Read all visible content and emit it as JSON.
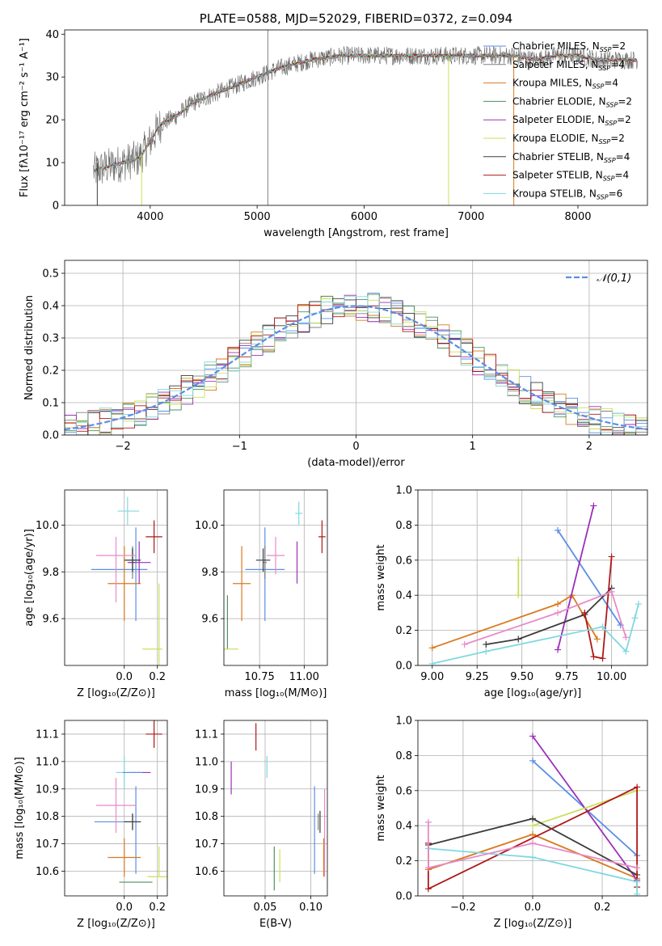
{
  "palette": [
    "#5b8ee6",
    "#808080",
    "#d97a1f",
    "#4f8f5f",
    "#9b30b8",
    "#c8e05a",
    "#3a3a3a",
    "#b01818",
    "#7fd8e0"
  ],
  "pal_light": "#e88ac8",
  "chart_data": [
    {
      "id": "spectrum",
      "type": "line",
      "title": "PLATE=0588, MJD=52029, FIBERID=0372, z=0.094",
      "xlabel": "wavelength [Angstrom, rest frame]",
      "ylabel": "Flux [fλ10⁻¹⁷ erg cm⁻² s⁻¹ A⁻¹]",
      "xlim": [
        3200,
        8650
      ],
      "ylim": [
        0,
        41
      ],
      "xticks": [
        4000,
        5000,
        6000,
        7000,
        8000
      ],
      "yticks": [
        0,
        10,
        20,
        30,
        40
      ],
      "grid": false,
      "legend_loc": "top-right",
      "continuum": [
        [
          3470,
          8
        ],
        [
          3600,
          9
        ],
        [
          3750,
          10
        ],
        [
          3900,
          11
        ],
        [
          4000,
          15
        ],
        [
          4100,
          19
        ],
        [
          4250,
          21
        ],
        [
          4400,
          24
        ],
        [
          4600,
          26
        ],
        [
          4800,
          28
        ],
        [
          5000,
          30
        ],
        [
          5200,
          32
        ],
        [
          5500,
          34
        ],
        [
          5800,
          35
        ],
        [
          6100,
          35
        ],
        [
          6400,
          35
        ],
        [
          6700,
          35
        ],
        [
          7000,
          35
        ],
        [
          7200,
          35
        ],
        [
          7400,
          35
        ],
        [
          7600,
          34
        ],
        [
          7800,
          35
        ],
        [
          8000,
          35
        ],
        [
          8200,
          34
        ],
        [
          8400,
          34
        ],
        [
          8560,
          34
        ]
      ],
      "series": [
        {
          "name": "Chabrier MILES, N_SSP=2"
        },
        {
          "name": "Salpeter MILES, N_SSP=4"
        },
        {
          "name": "Kroupa MILES, N_SSP=4"
        },
        {
          "name": "Chabrier ELODIE, N_SSP=2"
        },
        {
          "name": "Salpeter ELODIE, N_SSP=2"
        },
        {
          "name": "Kroupa ELODIE, N_SSP=2"
        },
        {
          "name": "Chabrier STELIB, N_SSP=4"
        },
        {
          "name": "Salpeter STELIB, N_SSP=4"
        },
        {
          "name": "Kroupa STELIB, N_SSP=6"
        }
      ]
    },
    {
      "id": "residuals",
      "type": "histogram",
      "xlabel": "(data-model)/error",
      "ylabel": "Normed distribution",
      "xlim": [
        -2.5,
        2.5
      ],
      "ylim": [
        0,
        0.54
      ],
      "xticks": [
        -2,
        -1,
        0,
        1,
        2
      ],
      "yticks": [
        0.0,
        0.1,
        0.2,
        0.3,
        0.4,
        0.5
      ],
      "grid": true,
      "legend": "𝒩(0,1)",
      "legend_loc": "top-right",
      "bin_width": 0.1
    },
    {
      "id": "age_vs_Z",
      "type": "errorbar",
      "xlabel": "Z [log₁₀(Z/Z⊙)]",
      "ylabel": "age  [log₁₀(age/yr)]",
      "xlim": [
        -0.36,
        0.26
      ],
      "ylim": [
        9.4,
        10.15
      ],
      "xticks": [
        0.0,
        0.2
      ],
      "yticks": [
        9.6,
        9.8,
        10.0
      ],
      "grid": true,
      "points": [
        {
          "s": 0,
          "x": 0.07,
          "y": 9.81,
          "xerr": [
            0.27,
            0.07
          ],
          "yerr": [
            0.22,
            0.18
          ]
        },
        {
          "s": 1,
          "x": 0.05,
          "y": 9.84,
          "xerr": [
            0.02,
            0.02
          ],
          "yerr": [
            0.07,
            0.07
          ]
        },
        {
          "s": 2,
          "x": 0.0,
          "y": 9.75,
          "xerr": [
            0.1,
            0.1
          ],
          "yerr": [
            0.16,
            0.16
          ]
        },
        {
          "s": 3,
          "x": 0.05,
          "y": 9.85,
          "xerr": [
            0.04,
            0.04
          ],
          "yerr": [
            0.05,
            0.05
          ]
        },
        {
          "s": 4,
          "x": 0.09,
          "y": 9.84,
          "xerr": [
            0.07,
            0.07
          ],
          "yerr": [
            0.09,
            0.09
          ]
        },
        {
          "s": 5,
          "x": 0.21,
          "y": 9.47,
          "xerr": [
            0.0,
            0.0
          ],
          "yerr": [
            0.1,
            0.28
          ]
        },
        {
          "s": 6,
          "x": 0.05,
          "y": 9.85,
          "xerr": [
            0.05,
            0.05
          ],
          "yerr": [
            0.05,
            0.05
          ]
        },
        {
          "s": 7,
          "x": 0.18,
          "y": 9.95,
          "xerr": [
            0.05,
            0.05
          ],
          "yerr": [
            0.07,
            0.07
          ]
        },
        {
          "s": 8,
          "x": 0.02,
          "y": 10.06,
          "xerr": [
            0.06,
            0.07
          ],
          "yerr": [
            0.06,
            0.06
          ]
        },
        {
          "s": "L",
          "x": -0.05,
          "y": 9.87,
          "xerr": [
            0.12,
            0.12
          ],
          "yerr": [
            0.2,
            0.08
          ]
        },
        {
          "s": 5,
          "x": 0.15,
          "y": 9.47,
          "xerr": [
            0.04,
            0.08
          ],
          "yerr": [
            0.0,
            0.0
          ]
        }
      ]
    },
    {
      "id": "age_vs_mass",
      "type": "errorbar",
      "xlabel": "mass [log₁₀(M/M⊙)]",
      "ylabel": "",
      "xlim": [
        10.55,
        11.13
      ],
      "ylim": [
        9.4,
        10.15
      ],
      "xticks": [
        10.75,
        11.0
      ],
      "yticks": [
        9.6,
        9.8,
        10.0
      ],
      "grid": true,
      "points": [
        {
          "s": 0,
          "x": 10.78,
          "y": 9.81,
          "xerr": [
            0.11,
            0.11
          ],
          "yerr": [
            0.22,
            0.18
          ]
        },
        {
          "s": 1,
          "x": 10.78,
          "y": 9.84,
          "xerr": [
            0.01,
            0.01
          ],
          "yerr": [
            0.07,
            0.07
          ]
        },
        {
          "s": 2,
          "x": 10.65,
          "y": 9.75,
          "xerr": [
            0.05,
            0.05
          ],
          "yerr": [
            0.16,
            0.16
          ]
        },
        {
          "s": 3,
          "x": 10.57,
          "y": 9.47,
          "xerr": [
            0.0,
            0.0
          ],
          "yerr": [
            0.0,
            0.23
          ]
        },
        {
          "s": 4,
          "x": 10.96,
          "y": 9.84,
          "xerr": [
            0.0,
            0.0
          ],
          "yerr": [
            0.09,
            0.09
          ]
        },
        {
          "s": 5,
          "x": 10.58,
          "y": 9.47,
          "xerr": [
            0.0,
            0.0
          ],
          "yerr": [
            0.0,
            0.0
          ]
        },
        {
          "s": 6,
          "x": 10.77,
          "y": 9.85,
          "xerr": [
            0.04,
            0.04
          ],
          "yerr": [
            0.05,
            0.05
          ]
        },
        {
          "s": 7,
          "x": 11.1,
          "y": 9.95,
          "xerr": [
            0.02,
            0.02
          ],
          "yerr": [
            0.07,
            0.07
          ]
        },
        {
          "s": 8,
          "x": 10.97,
          "y": 10.05,
          "xerr": [
            0.02,
            0.02
          ],
          "yerr": [
            0.05,
            0.05
          ]
        },
        {
          "s": "L",
          "x": 10.84,
          "y": 9.87,
          "xerr": [
            0.05,
            0.05
          ],
          "yerr": [
            0.08,
            0.08
          ]
        },
        {
          "s": 5,
          "x": 10.59,
          "y": 9.47,
          "xerr": [
            0.04,
            0.04
          ],
          "yerr": [
            0.0,
            0.0
          ]
        }
      ]
    },
    {
      "id": "weight_vs_age",
      "type": "line",
      "xlabel": "age  [log₁₀(age/yr)]",
      "ylabel": "mass weight",
      "xlim": [
        8.92,
        10.2
      ],
      "ylim": [
        0,
        1
      ],
      "xticks": [
        9.0,
        9.25,
        9.5,
        9.75,
        10.0
      ],
      "yticks": [
        0.0,
        0.2,
        0.4,
        0.6,
        0.8,
        1.0
      ],
      "grid": true,
      "series": [
        {
          "s": 0,
          "x": [
            9.7,
            10.05
          ],
          "y": [
            0.77,
            0.23
          ]
        },
        {
          "s": 2,
          "x": [
            9.0,
            9.7,
            9.78,
            9.92
          ],
          "y": [
            0.1,
            0.35,
            0.4,
            0.15
          ]
        },
        {
          "s": 4,
          "x": [
            9.7,
            9.9
          ],
          "y": [
            0.09,
            0.91
          ]
        },
        {
          "s": 5,
          "x": [
            9.48,
            9.48
          ],
          "y": [
            0.4,
            0.6
          ]
        },
        {
          "s": 6,
          "x": [
            9.3,
            9.48,
            9.85,
            10.0
          ],
          "y": [
            0.12,
            0.15,
            0.29,
            0.44
          ]
        },
        {
          "s": 7,
          "x": [
            9.85,
            9.9,
            9.95,
            10.0
          ],
          "y": [
            0.3,
            0.05,
            0.04,
            0.62
          ]
        },
        {
          "s": 8,
          "x": [
            9.0,
            9.3,
            9.95,
            10.08,
            10.13,
            10.15
          ],
          "y": [
            0.01,
            0.08,
            0.22,
            0.08,
            0.27,
            0.35
          ]
        },
        {
          "s": "L",
          "x": [
            9.18,
            9.7,
            10.0,
            10.08
          ],
          "y": [
            0.12,
            0.3,
            0.42,
            0.16
          ]
        }
      ]
    },
    {
      "id": "mass_vs_Z",
      "type": "errorbar",
      "xlabel": "Z [log₁₀(Z/Z⊙)]",
      "ylabel": "mass [log₁₀(M/M⊙)]",
      "xlim": [
        -0.36,
        0.26
      ],
      "ylim": [
        10.51,
        11.15
      ],
      "xticks": [
        0.0,
        0.2
      ],
      "yticks": [
        10.6,
        10.7,
        10.8,
        10.9,
        11.0,
        11.1
      ],
      "grid": true,
      "points": [
        {
          "s": 0,
          "x": 0.07,
          "y": 10.78,
          "xerr": [
            0.25,
            0.0
          ],
          "yerr": [
            0.19,
            0.13
          ]
        },
        {
          "s": 1,
          "x": 0.05,
          "y": 10.78,
          "xerr": [
            0.05,
            0.05
          ],
          "yerr": [
            0.03,
            0.03
          ]
        },
        {
          "s": 2,
          "x": 0.0,
          "y": 10.65,
          "xerr": [
            0.1,
            0.1
          ],
          "yerr": [
            0.07,
            0.07
          ]
        },
        {
          "s": 3,
          "x": 0.07,
          "y": 10.56,
          "xerr": [
            0.1,
            0.1
          ],
          "yerr": [
            0.0,
            0.0
          ]
        },
        {
          "s": 4,
          "x": 0.1,
          "y": 10.96,
          "xerr": [
            0.06,
            0.06
          ],
          "yerr": [
            0.0,
            0.0
          ]
        },
        {
          "s": 5,
          "x": 0.21,
          "y": 10.58,
          "xerr": [
            0.07,
            0.07
          ],
          "yerr": [
            0.0,
            0.11
          ]
        },
        {
          "s": 6,
          "x": 0.05,
          "y": 10.78,
          "xerr": [
            0.05,
            0.05
          ],
          "yerr": [
            0.03,
            0.03
          ]
        },
        {
          "s": 7,
          "x": 0.18,
          "y": 11.1,
          "xerr": [
            0.05,
            0.05
          ],
          "yerr": [
            0.05,
            0.05
          ]
        },
        {
          "s": 8,
          "x": 0.0,
          "y": 10.96,
          "xerr": [
            0.05,
            0.05
          ],
          "yerr": [
            0.06,
            0.06
          ]
        },
        {
          "s": "L",
          "x": -0.05,
          "y": 10.84,
          "xerr": [
            0.12,
            0.12
          ],
          "yerr": [
            0.1,
            0.1
          ]
        },
        {
          "s": 0,
          "x": 0.05,
          "y": 10.96,
          "xerr": [
            0.06,
            0.06
          ],
          "yerr": [
            0.0,
            0.0
          ]
        }
      ]
    },
    {
      "id": "mass_vs_ebv",
      "type": "errorbar",
      "xlabel": "E(B-V)",
      "ylabel": "",
      "xlim": [
        0.005,
        0.118
      ],
      "ylim": [
        10.51,
        11.15
      ],
      "xticks": [
        0.05,
        0.1
      ],
      "yticks": [
        10.6,
        10.7,
        10.8,
        10.9,
        11.0,
        11.1
      ],
      "grid": true,
      "points": [
        {
          "s": 0,
          "x": 0.104,
          "y": 10.78,
          "xerr": [
            0,
            0
          ],
          "yerr": [
            0.19,
            0.13
          ]
        },
        {
          "s": 1,
          "x": 0.108,
          "y": 10.78,
          "xerr": [
            0,
            0
          ],
          "yerr": [
            0.03,
            0.03
          ]
        },
        {
          "s": 2,
          "x": 0.114,
          "y": 10.65,
          "xerr": [
            0,
            0
          ],
          "yerr": [
            0.07,
            0.07
          ]
        },
        {
          "s": 3,
          "x": 0.06,
          "y": 10.61,
          "xerr": [
            0,
            0
          ],
          "yerr": [
            0.08,
            0.08
          ]
        },
        {
          "s": 4,
          "x": 0.013,
          "y": 10.94,
          "xerr": [
            0,
            0
          ],
          "yerr": [
            0.06,
            0.06
          ]
        },
        {
          "s": 5,
          "x": 0.066,
          "y": 10.62,
          "xerr": [
            0,
            0
          ],
          "yerr": [
            0.06,
            0.06
          ]
        },
        {
          "s": 6,
          "x": 0.11,
          "y": 10.78,
          "xerr": [
            0,
            0
          ],
          "yerr": [
            0.04,
            0.04
          ]
        },
        {
          "s": 7,
          "x": 0.04,
          "y": 11.09,
          "xerr": [
            0,
            0
          ],
          "yerr": [
            0.05,
            0.05
          ]
        },
        {
          "s": 8,
          "x": 0.052,
          "y": 10.98,
          "xerr": [
            0,
            0
          ],
          "yerr": [
            0.04,
            0.04
          ]
        },
        {
          "s": "L",
          "x": 0.115,
          "y": 10.74,
          "xerr": [
            0,
            0
          ],
          "yerr": [
            0.16,
            0.16
          ]
        }
      ]
    },
    {
      "id": "weight_vs_Z",
      "type": "line",
      "xlabel": "Z [log₁₀(Z/Z⊙)]",
      "ylabel": "mass weight",
      "xlim": [
        -0.33,
        0.33
      ],
      "ylim": [
        0,
        1
      ],
      "xticks": [
        -0.2,
        0.0,
        0.2
      ],
      "yticks": [
        0.0,
        0.2,
        0.4,
        0.6,
        0.8,
        1.0
      ],
      "grid": true,
      "series": [
        {
          "s": 0,
          "x": [
            0.0,
            0.3
          ],
          "y": [
            0.77,
            0.23
          ]
        },
        {
          "s": 2,
          "x": [
            -0.3,
            0.0,
            0.3
          ],
          "y": [
            0.15,
            0.35,
            0.1
          ]
        },
        {
          "s": 4,
          "x": [
            0.0,
            0.3
          ],
          "y": [
            0.91,
            0.09
          ]
        },
        {
          "s": 5,
          "x": [
            0.0,
            0.3
          ],
          "y": [
            0.4,
            0.6
          ]
        },
        {
          "s": 6,
          "x": [
            -0.3,
            0.0,
            0.3
          ],
          "y": [
            0.29,
            0.44,
            0.12
          ]
        },
        {
          "s": 7,
          "x": [
            -0.3,
            -0.3,
            0.3,
            0.3
          ],
          "y": [
            0.3,
            0.04,
            0.62,
            0.05
          ]
        },
        {
          "s": 8,
          "x": [
            -0.3,
            0.0,
            0.3,
            0.3
          ],
          "y": [
            0.27,
            0.22,
            0.08,
            0.01
          ]
        },
        {
          "s": "L",
          "x": [
            -0.3,
            -0.3,
            0.0,
            0.3
          ],
          "y": [
            0.42,
            0.16,
            0.3,
            0.16
          ]
        }
      ]
    }
  ]
}
